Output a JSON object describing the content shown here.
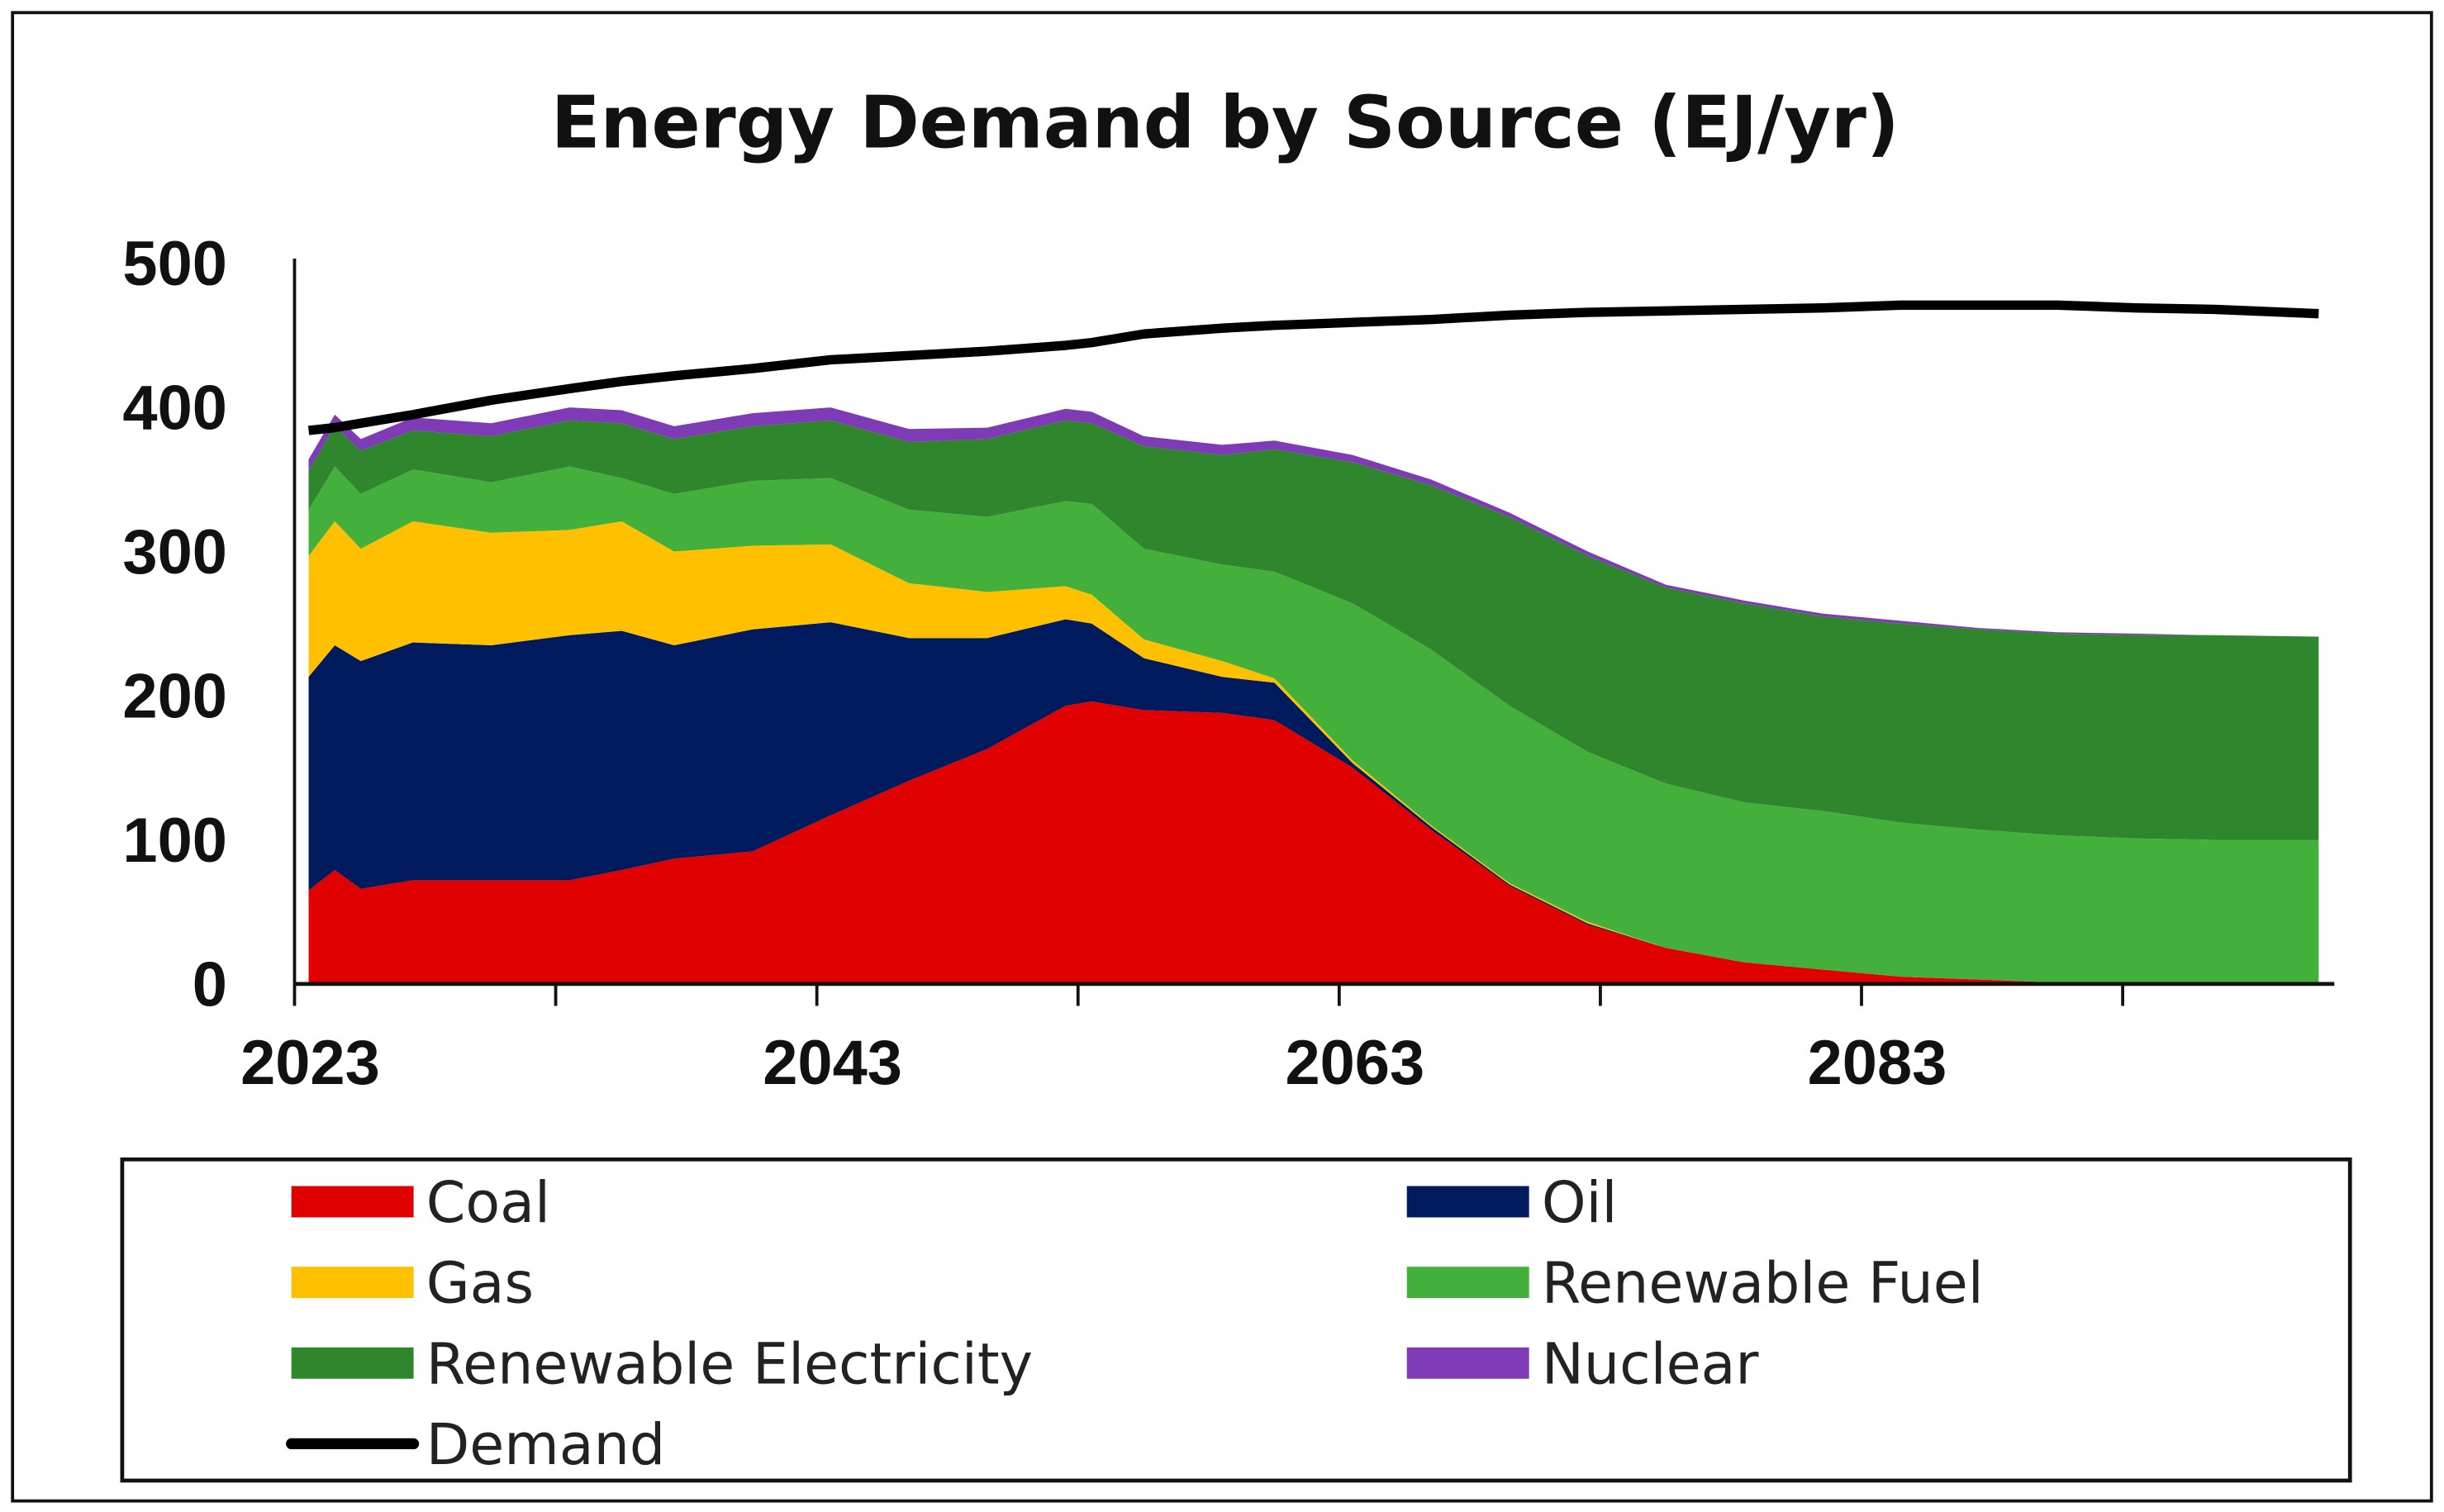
{
  "chart_data": {
    "type": "area",
    "stacked": true,
    "title": "Energy Demand by Source (EJ/yr)",
    "xlabel": "",
    "ylabel": "",
    "ylim": [
      0,
      500
    ],
    "xlim": [
      2023,
      2100
    ],
    "y_ticks": [
      "0",
      "100",
      "200",
      "300",
      "400",
      "500"
    ],
    "x_tick_labels": [
      "2023",
      "2043",
      "2063",
      "2083"
    ],
    "x_tick_marks": [
      2023,
      2033,
      2043,
      2053,
      2063,
      2073,
      2083,
      2093
    ],
    "grid": false,
    "legend_position": "bottom",
    "x": [
      2023,
      2024,
      2025,
      2027,
      2030,
      2033,
      2035,
      2037,
      2040,
      2043,
      2046,
      2049,
      2052,
      2053,
      2055,
      2058,
      2060,
      2063,
      2066,
      2069,
      2072,
      2075,
      2078,
      2081,
      2084,
      2087,
      2090,
      2093,
      2096,
      2100
    ],
    "series": [
      {
        "name": "Coal",
        "color": "#E00000",
        "values": [
          65,
          79,
          66,
          72,
          72,
          72,
          79,
          87,
          92,
          117,
          141,
          163,
          193,
          196,
          190,
          188,
          183,
          150,
          107,
          68,
          41,
          25,
          15,
          10,
          5,
          3,
          1,
          0,
          0,
          0
        ]
      },
      {
        "name": "Oil",
        "color": "#001A5E",
        "values": [
          148,
          156,
          158,
          165,
          163,
          170,
          166,
          148,
          154,
          134,
          99,
          77,
          60,
          54,
          36,
          25,
          26,
          3,
          2,
          1,
          1,
          0,
          0,
          0,
          0,
          0,
          0,
          0,
          0,
          0
        ]
      },
      {
        "name": "Gas",
        "color": "#FFC000",
        "values": [
          84,
          86,
          78,
          84,
          78,
          73,
          76,
          65,
          58,
          54,
          38,
          32,
          23,
          20,
          13,
          11,
          3,
          2,
          1,
          1,
          1,
          0,
          0,
          0,
          0,
          0,
          0,
          0,
          0,
          0
        ]
      },
      {
        "name": "Renewable Fuel",
        "color": "#44B03C",
        "values": [
          32,
          38,
          38,
          36,
          35,
          44,
          30,
          40,
          45,
          46,
          51,
          52,
          59,
          63,
          63,
          67,
          74,
          109,
          122,
          123,
          118,
          114,
          111,
          110,
          107,
          104,
          102,
          101,
          100,
          100
        ]
      },
      {
        "name": "Renewable Electricity",
        "color": "#2F862C",
        "values": [
          27,
          28,
          30,
          27,
          32,
          32,
          38,
          38,
          38,
          40,
          47,
          54,
          56,
          56,
          71,
          76,
          85,
          98,
          114,
          131,
          136,
          136,
          138,
          135,
          138,
          139,
          140,
          141,
          142,
          141
        ]
      },
      {
        "name": "Nuclear",
        "color": "#7E3BB5",
        "values": [
          8,
          8,
          8,
          9,
          9,
          9,
          9,
          9,
          9,
          9,
          9,
          8,
          8,
          8,
          7,
          7,
          6,
          5,
          4,
          3,
          3,
          2,
          2,
          2,
          2,
          1,
          1,
          1,
          0,
          0
        ]
      }
    ],
    "line_series": {
      "name": "Demand",
      "color": "#000000",
      "values": [
        384,
        386,
        389,
        395,
        405,
        413,
        418,
        422,
        427,
        433,
        436,
        439,
        443,
        445,
        451,
        455,
        457,
        459,
        461,
        464,
        466,
        467,
        468,
        469,
        471,
        471,
        471,
        469,
        468,
        465
      ]
    },
    "legend": [
      "Coal",
      "Oil",
      "Gas",
      "Renewable Fuel",
      "Renewable Electricity",
      "Nuclear",
      "Demand"
    ]
  }
}
